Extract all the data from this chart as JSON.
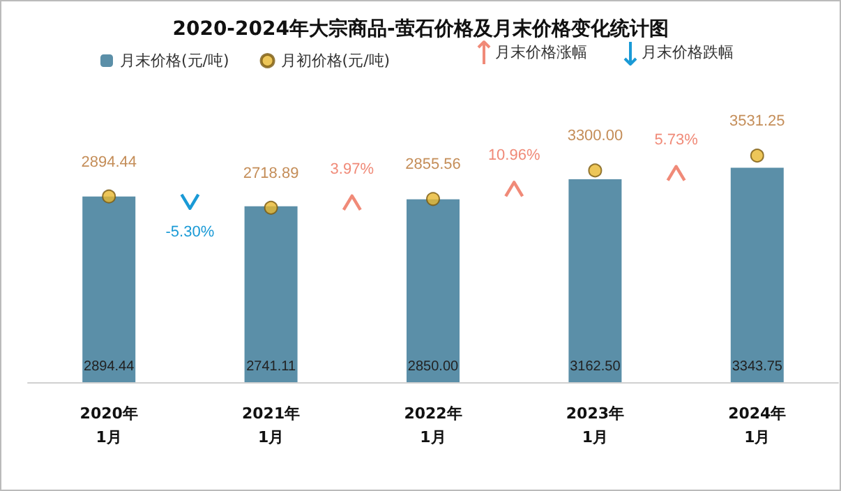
{
  "chart_data": {
    "type": "bar",
    "title": "2020-2024年大宗商品-萤石价格及月末价格变化统计图",
    "categories": [
      "2020年\n1月",
      "2021年\n1月",
      "2022年\n1月",
      "2023年\n1月",
      "2024年\n1月"
    ],
    "series": [
      {
        "name": "月末价格(元/吨)",
        "type": "bar",
        "color": "#5b8fa8",
        "values": [
          2894.44,
          2741.11,
          2850.0,
          3162.5,
          3343.75
        ],
        "value_labels": [
          "2894.44",
          "2741.11",
          "2850.00",
          "3162.50",
          "3343.75"
        ]
      },
      {
        "name": "月初价格(元/吨)",
        "type": "scatter",
        "color": "#e8b830",
        "values": [
          2894.44,
          2718.89,
          2855.56,
          3300.0,
          3531.25
        ],
        "value_labels": [
          "2894.44",
          "2718.89",
          "2855.56",
          "3300.00",
          "3531.25"
        ]
      }
    ],
    "annotations": [
      "月末价格涨幅",
      "月末价格跌幅",
      "-5.30%",
      "3.97%",
      "10.96%",
      "5.73%"
    ],
    "legend": "top",
    "marker": "circle",
    "tick_labels": "x"
  }
}
